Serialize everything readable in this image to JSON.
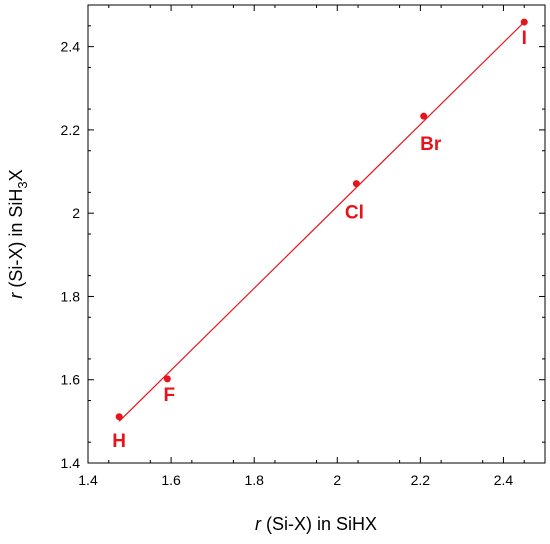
{
  "chart_data": {
    "type": "scatter",
    "title": "",
    "xlabel": {
      "var": "r",
      "text": " (Si-X) in SiHX"
    },
    "ylabel": {
      "var": "r",
      "pre": " (Si-X) in SiH",
      "sub": "3",
      "post": "X"
    },
    "xlim": [
      1.4,
      2.5
    ],
    "ylim": [
      1.4,
      2.5
    ],
    "xticks": [
      1.4,
      1.6,
      1.8,
      2.0,
      2.2,
      2.4
    ],
    "yticks": [
      1.4,
      1.6,
      1.8,
      2.0,
      2.2,
      2.4
    ],
    "xtick_labels": [
      "1.4",
      "1.6",
      "1.8",
      "2",
      "2.2",
      "2.4"
    ],
    "ytick_labels": [
      "1.4",
      "1.6",
      "1.8",
      "2",
      "2.2",
      "2.4"
    ],
    "grid": false,
    "color": "#e8141c",
    "points": [
      {
        "label": "H",
        "x": 1.475,
        "y": 1.511
      },
      {
        "label": "F",
        "x": 1.591,
        "y": 1.602
      },
      {
        "label": "Cl",
        "x": 2.046,
        "y": 2.071
      },
      {
        "label": "Br",
        "x": 2.208,
        "y": 2.233
      },
      {
        "label": "I",
        "x": 2.45,
        "y": 2.459
      }
    ],
    "fit_line": {
      "x": [
        1.475,
        2.45
      ],
      "y": [
        1.5,
        2.459
      ]
    }
  }
}
